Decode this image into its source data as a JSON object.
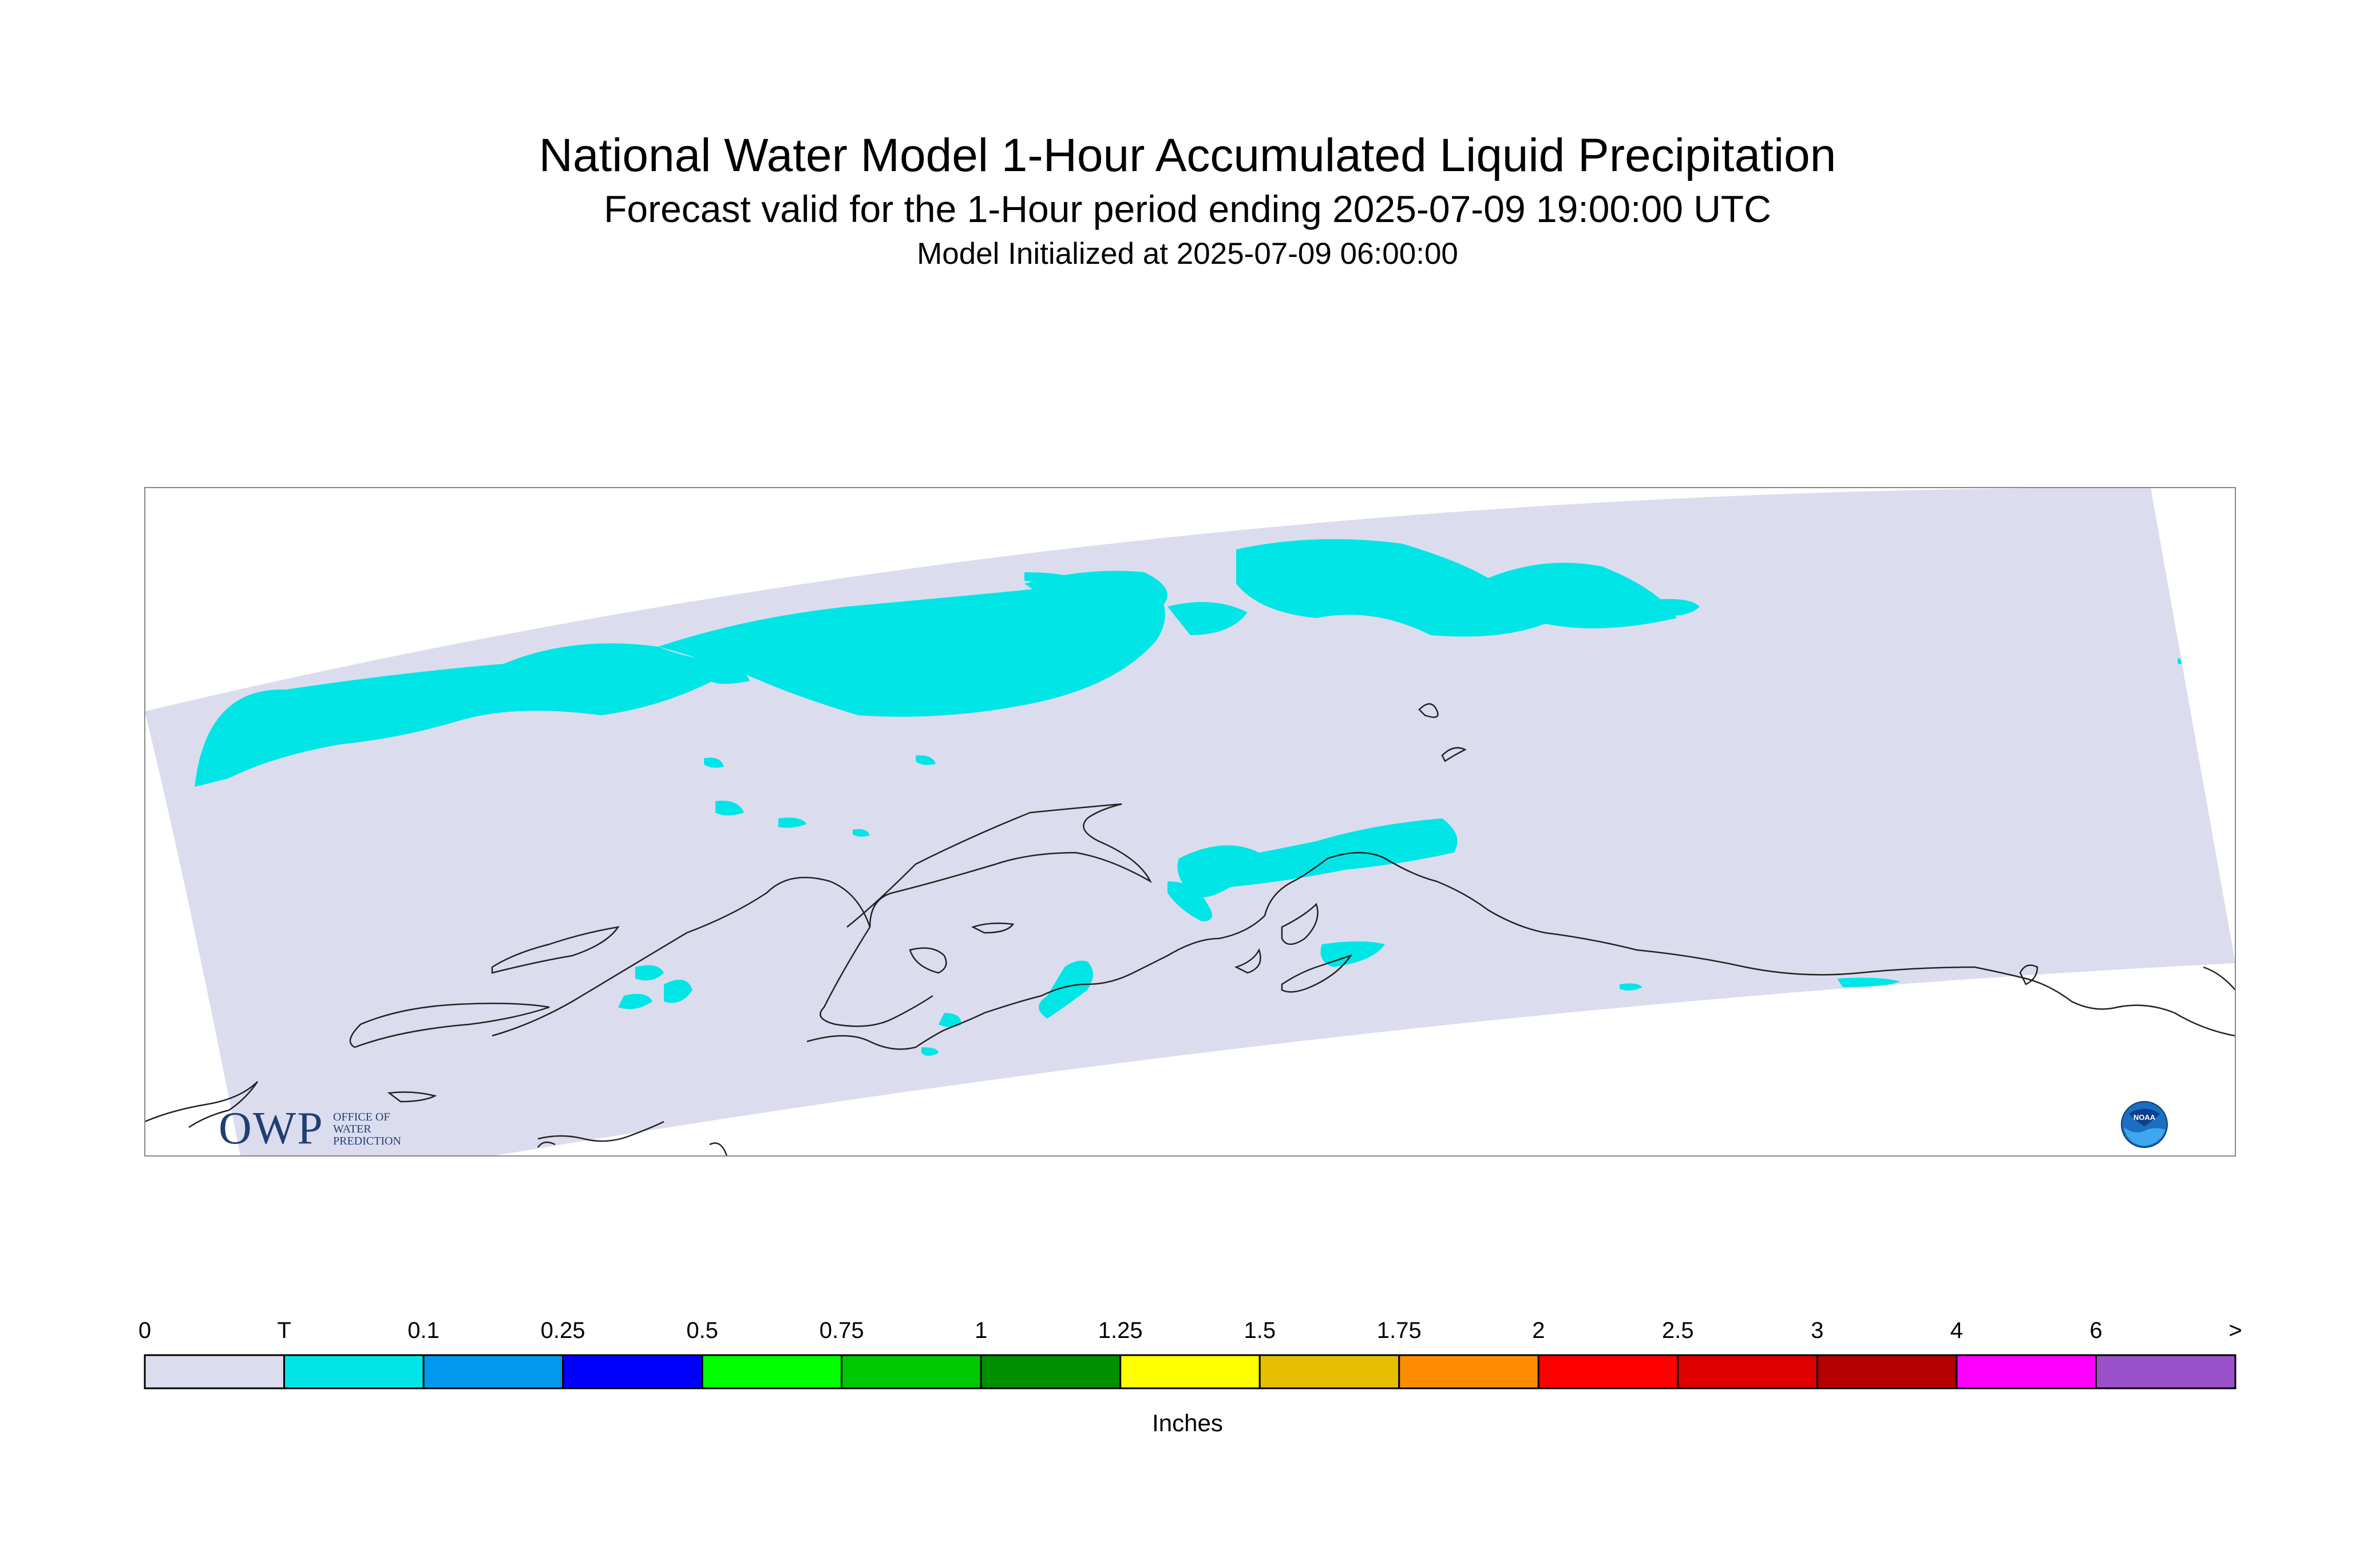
{
  "title": {
    "line1": "National Water Model 1-Hour Accumulated Liquid Precipitation",
    "line2": "Forecast valid for the 1-Hour period ending 2025-07-09 19:00:00 UTC",
    "line3": "Model Initialized at 2025-07-09 06:00:00"
  },
  "legend": {
    "units": "Inches",
    "labels": [
      "0",
      "T",
      "0.1",
      "0.25",
      "0.5",
      "0.75",
      "1",
      "1.25",
      "1.5",
      "1.75",
      "2",
      "2.5",
      "3",
      "4",
      "6",
      ">"
    ],
    "colors": [
      "#dcdcef",
      "#00e6e6",
      "#0099ee",
      "#0000ff",
      "#00ff00",
      "#00c800",
      "#008f00",
      "#ffff00",
      "#e6be00",
      "#ff8c00",
      "#ff0000",
      "#dc0000",
      "#b40000",
      "#ff00ff",
      "#9a50c8"
    ]
  },
  "colors": {
    "domain_fill": "#dcdcef",
    "trace_precip": "#00e6e6",
    "coastline": "#222222",
    "frame": "#888888"
  },
  "logos": {
    "owp_mark": "OWP",
    "owp_text": "OFFICE OF\nWATER\nPREDICTION",
    "noaa_text": "NOAA"
  }
}
